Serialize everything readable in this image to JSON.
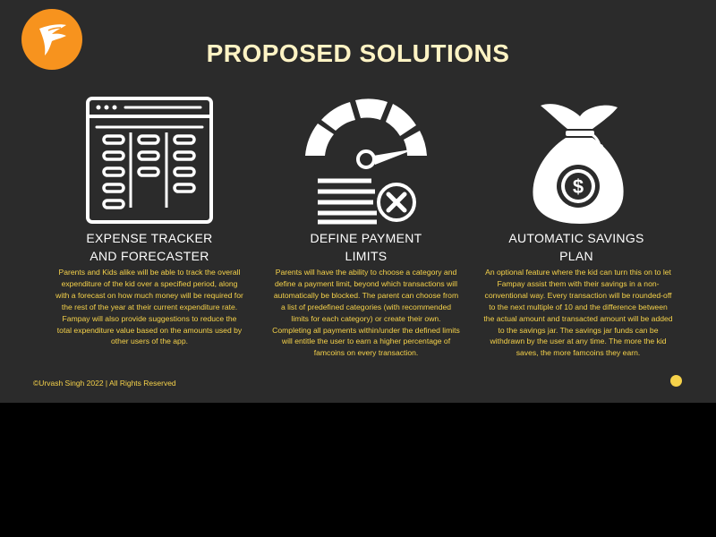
{
  "title": "PROPOSED SOLUTIONS",
  "brand_logo": {
    "icon": "fampay-bird-logo",
    "color": "#f7931e"
  },
  "solutions": [
    {
      "icon": "spreadsheet-icon",
      "heading_line1": "EXPENSE TRACKER",
      "heading_line2": "AND FORECASTER",
      "description": "Parents and Kids alike will be able to track the overall expenditure of the kid over a specified period, along with a forecast on how much money will be required for the rest of the year at their current expenditure rate. Fampay will also provide suggestions to reduce the total expenditure value based on the amounts used by other users of the app."
    },
    {
      "icon": "speedometer-limit-icon",
      "heading_line1": "DEFINE PAYMENT",
      "heading_line2": "LIMITS",
      "description": "Parents will have the ability to choose a category and define a payment limit, beyond which transactions will automatically be blocked. The parent can choose from a list of predefined categories (with recommended limits for each category) or create their own. Completing all payments within/under the defined limits will entitle the user to earn a higher percentage of famcoins on every transaction."
    },
    {
      "icon": "money-bag-icon",
      "heading_line1": "AUTOMATIC SAVINGS",
      "heading_line2": "PLAN",
      "description": "An optional feature where the kid can turn this on to let Fampay assist them with their savings in a non-conventional way. Every transaction will be rounded-off to the next multiple of 10 and the difference between the actual amount and transacted amount will be added to the savings jar. The savings jar funds can be withdrawn by the user at any time. The more the kid saves, the more famcoins they earn."
    }
  ],
  "footer": "©Urvash Singh 2022 | All Rights Reserved",
  "colors": {
    "background": "#2b2b2b",
    "title": "#fff3c4",
    "accent": "#f6d24a"
  }
}
